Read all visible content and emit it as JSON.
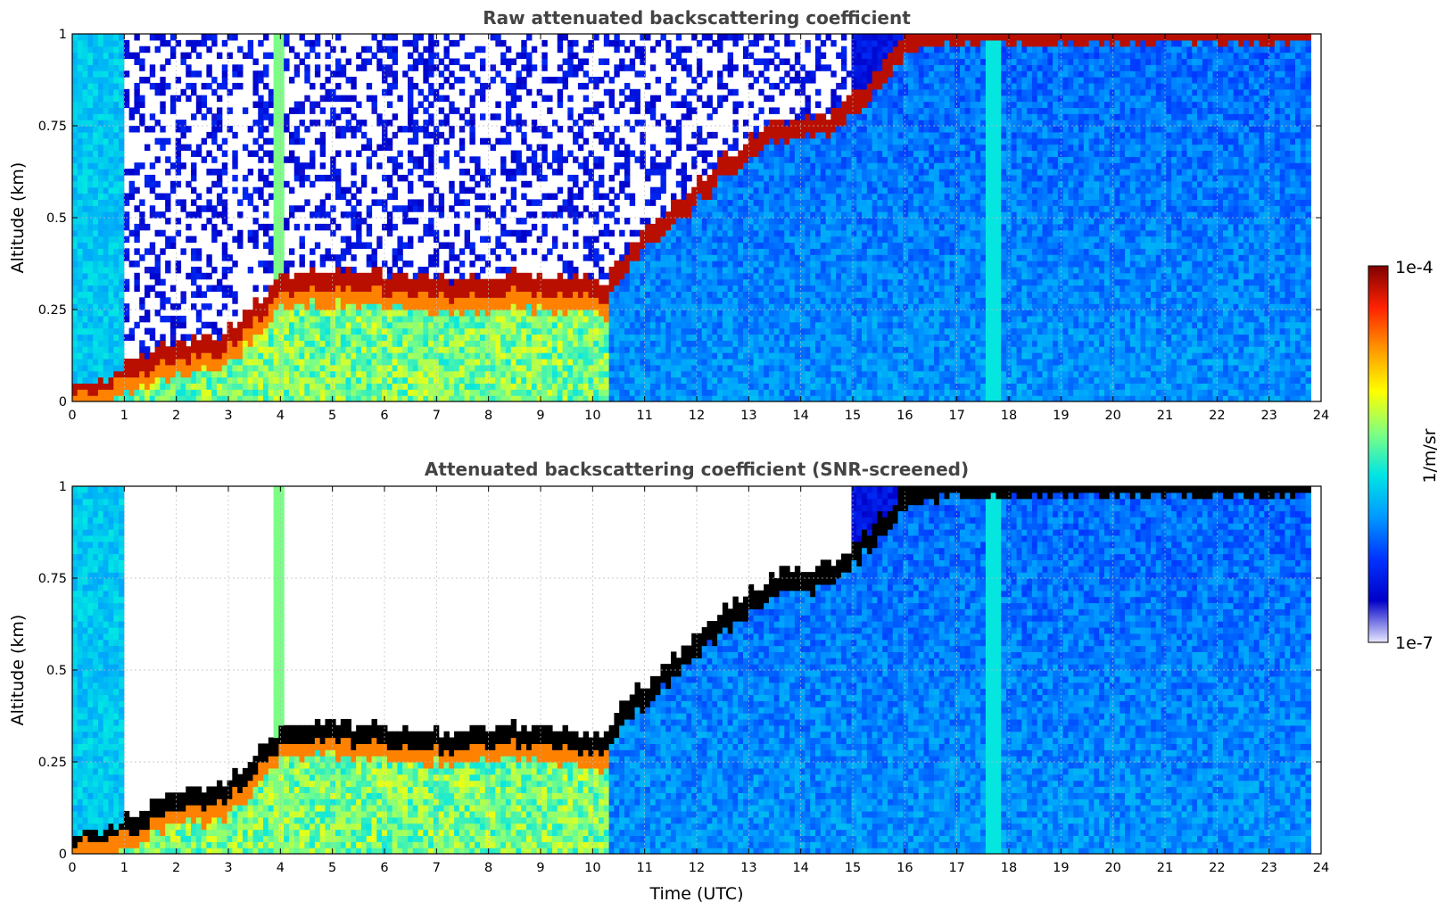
{
  "chart_data": [
    {
      "type": "heatmap",
      "title": "Raw attenuated backscattering coefficient",
      "xlabel": "",
      "ylabel": "Altitude (km)",
      "xlim": [
        0,
        24
      ],
      "ylim": [
        0,
        1
      ],
      "xticks": [
        "0",
        "1",
        "2",
        "3",
        "4",
        "5",
        "6",
        "7",
        "8",
        "9",
        "10",
        "11",
        "12",
        "13",
        "14",
        "15",
        "16",
        "17",
        "18",
        "19",
        "20",
        "21",
        "22",
        "23",
        "24"
      ],
      "yticks": [
        "0",
        "0.25",
        "0.5",
        "0.75",
        "1"
      ],
      "grid": true,
      "screened": false,
      "data_end_time": 23.8,
      "layer_top_profile": {
        "time": [
          0.0,
          1.0,
          2.0,
          2.8,
          3.2,
          4.0,
          4.6,
          5.5,
          6.5,
          7.5,
          8.5,
          9.5,
          10.3,
          10.6,
          11.5,
          12.5,
          13.5,
          14.5,
          15.3,
          16.0,
          17.0,
          17.6
        ],
        "altitude_km": [
          0.05,
          0.08,
          0.15,
          0.16,
          0.2,
          0.32,
          0.34,
          0.33,
          0.32,
          0.31,
          0.33,
          0.32,
          0.3,
          0.38,
          0.5,
          0.63,
          0.73,
          0.75,
          0.85,
          0.97,
          1.0,
          1.0
        ]
      }
    },
    {
      "type": "heatmap",
      "title": "Attenuated backscattering coefficient (SNR-screened)",
      "xlabel": "Time (UTC)",
      "ylabel": "Altitude (km)",
      "xlim": [
        0,
        24
      ],
      "ylim": [
        0,
        1
      ],
      "xticks": [
        "0",
        "1",
        "2",
        "3",
        "4",
        "5",
        "6",
        "7",
        "8",
        "9",
        "10",
        "11",
        "12",
        "13",
        "14",
        "15",
        "16",
        "17",
        "18",
        "19",
        "20",
        "21",
        "22",
        "23",
        "24"
      ],
      "yticks": [
        "0",
        "0.25",
        "0.5",
        "0.75",
        "1"
      ],
      "grid": true,
      "screened": true,
      "data_end_time": 23.8,
      "layer_top_profile": {
        "time": [
          0.0,
          1.0,
          2.0,
          2.8,
          3.2,
          4.0,
          4.6,
          5.5,
          6.5,
          7.5,
          8.5,
          9.5,
          10.3,
          10.6,
          11.5,
          12.5,
          13.5,
          14.5,
          15.3,
          16.0,
          17.0,
          17.6
        ],
        "altitude_km": [
          0.05,
          0.08,
          0.15,
          0.16,
          0.2,
          0.32,
          0.34,
          0.33,
          0.32,
          0.31,
          0.33,
          0.32,
          0.3,
          0.38,
          0.5,
          0.63,
          0.73,
          0.75,
          0.85,
          0.97,
          1.0,
          1.0
        ]
      }
    }
  ],
  "colorbar": {
    "label": "1/m/sr",
    "max_label": "1e-4",
    "min_label": "1e-7",
    "scale": "log",
    "colormap": [
      "#e8e8ff",
      "#0000c8",
      "#0033ff",
      "#0099ff",
      "#00e5e5",
      "#80ff80",
      "#ffff00",
      "#ff9900",
      "#ff2200",
      "#800000"
    ]
  }
}
